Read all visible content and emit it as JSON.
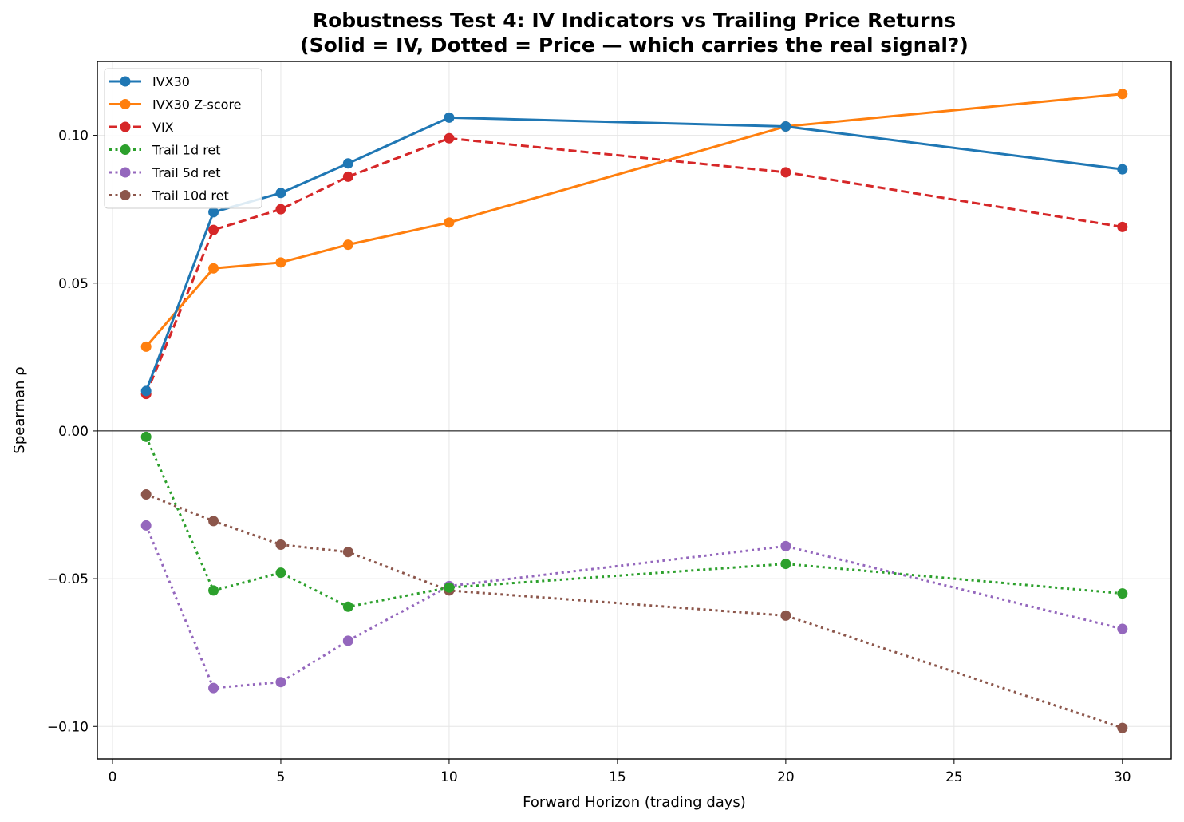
{
  "chart_data": {
    "type": "line",
    "title": "Robustness Test 4: IV Indicators vs Trailing Price Returns",
    "subtitle": "(Solid = IV, Dotted = Price — which carries the real signal?)",
    "xlabel": "Forward Horizon (trading days)",
    "ylabel": "Spearman ρ",
    "xlim": [
      -0.45,
      31.45
    ],
    "ylim": [
      -0.111,
      0.125
    ],
    "x_ticks": [
      0,
      5,
      10,
      15,
      20,
      25,
      30
    ],
    "x_tick_labels": [
      "0",
      "5",
      "10",
      "15",
      "20",
      "25",
      "30"
    ],
    "y_ticks": [
      -0.1,
      -0.05,
      0.0,
      0.05,
      0.1
    ],
    "y_tick_labels": [
      "−0.10",
      "−0.05",
      "0.00",
      "0.05",
      "0.10"
    ],
    "grid": true,
    "zero_line": true,
    "legend_location": "top-left",
    "x": [
      1,
      3,
      5,
      7,
      10,
      20,
      30
    ],
    "series": [
      {
        "name": "IVX30",
        "color": "#1f77b4",
        "style": "solid",
        "values": [
          0.0135,
          0.074,
          0.0805,
          0.0905,
          0.106,
          0.103,
          0.0885
        ]
      },
      {
        "name": "IVX30 Z-score",
        "color": "#ff7f0e",
        "style": "solid",
        "values": [
          0.0285,
          0.055,
          0.057,
          0.063,
          0.0705,
          0.103,
          0.114
        ]
      },
      {
        "name": "VIX",
        "color": "#d62728",
        "style": "dashed",
        "values": [
          0.0125,
          0.068,
          0.075,
          0.086,
          0.099,
          0.0875,
          0.069
        ]
      },
      {
        "name": "Trail 1d ret",
        "color": "#2ca02c",
        "style": "dotted",
        "values": [
          -0.002,
          -0.054,
          -0.048,
          -0.0595,
          -0.053,
          -0.045,
          -0.055
        ]
      },
      {
        "name": "Trail 5d ret",
        "color": "#9467bd",
        "style": "dotted",
        "values": [
          -0.032,
          -0.087,
          -0.085,
          -0.071,
          -0.0525,
          -0.039,
          -0.067
        ]
      },
      {
        "name": "Trail 10d ret",
        "color": "#8c564b",
        "style": "dotted",
        "values": [
          -0.0215,
          -0.0305,
          -0.0385,
          -0.041,
          -0.054,
          -0.0625,
          -0.1005
        ]
      }
    ]
  }
}
